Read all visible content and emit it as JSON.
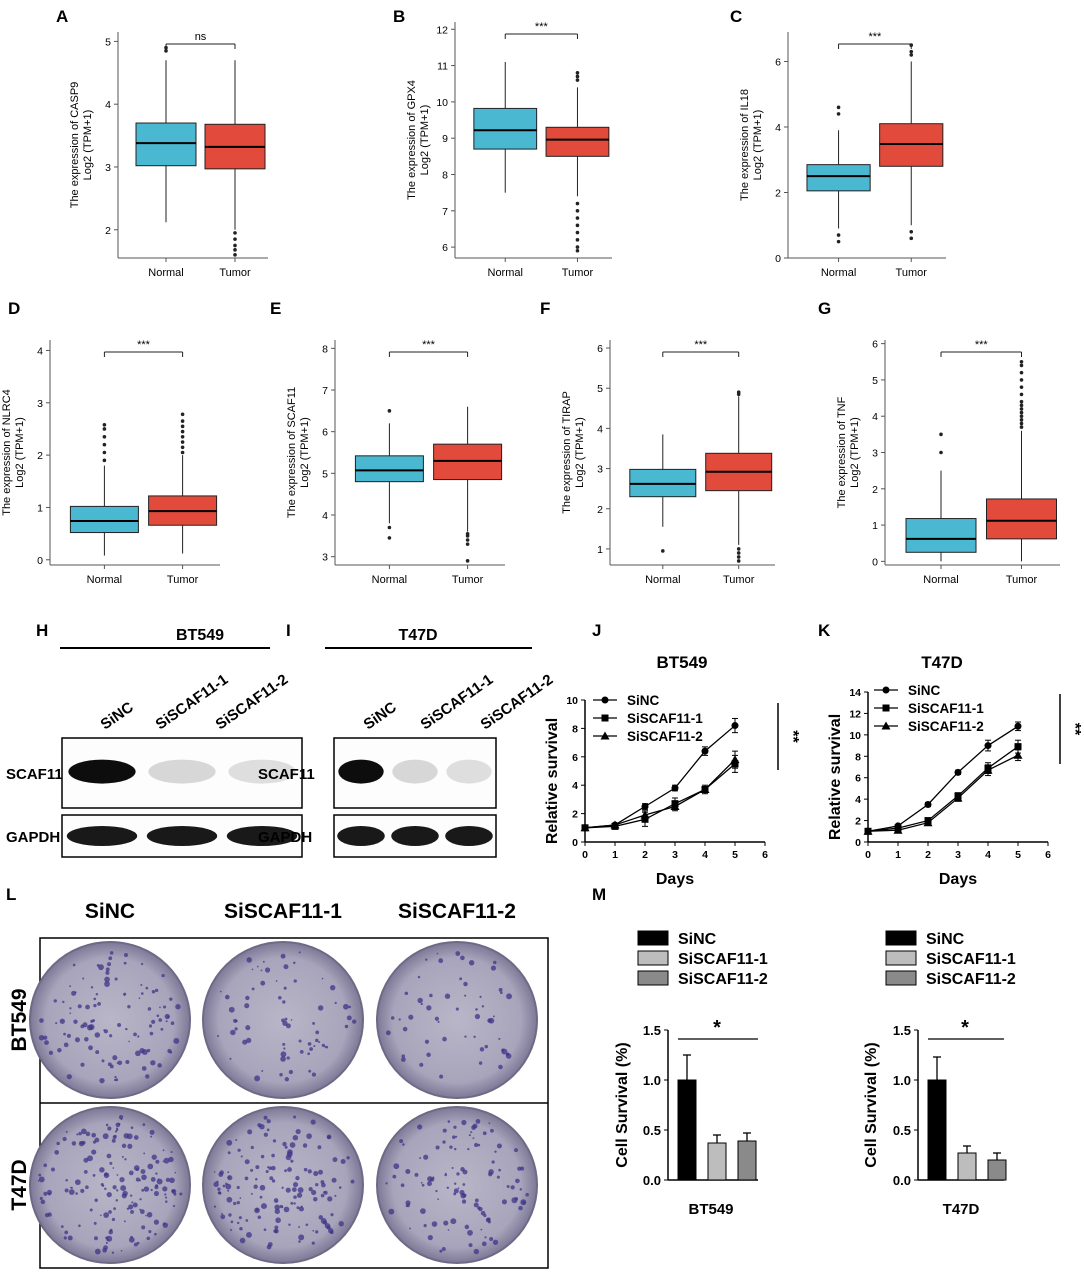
{
  "figure": {
    "colors": {
      "normal": "#4ab8d1",
      "tumor": "#e24b3b"
    },
    "boxplots": [
      {
        "label": "A",
        "gene": "CASP9",
        "ylabel1": "The expression of CASP9",
        "ylabel2": "Log2 (TPM+1)",
        "sig": "ns",
        "categories": [
          "Normal",
          "Tumor"
        ],
        "yticks": [
          2,
          3,
          4,
          5
        ],
        "ylim": [
          1.55,
          5.15
        ],
        "boxes": [
          {
            "q1": 3.02,
            "median": 3.38,
            "q3": 3.7,
            "wlo": 2.12,
            "whi": 4.7,
            "out": [
              4.85,
              4.9
            ]
          },
          {
            "q1": 2.97,
            "median": 3.32,
            "q3": 3.68,
            "wlo": 2.0,
            "whi": 4.7,
            "out": [
              1.6,
              1.68,
              1.75,
              1.85,
              1.95
            ]
          }
        ]
      },
      {
        "label": "B",
        "gene": "GPX4",
        "ylabel1": "The expression of GPX4",
        "ylabel2": "Log2 (TPM+1)",
        "sig": "***",
        "categories": [
          "Normal",
          "Tumor"
        ],
        "yticks": [
          6,
          7,
          8,
          9,
          10,
          11,
          12
        ],
        "ylim": [
          5.7,
          12.2
        ],
        "boxes": [
          {
            "q1": 8.7,
            "median": 9.22,
            "q3": 9.82,
            "wlo": 7.5,
            "whi": 11.1,
            "out": []
          },
          {
            "q1": 8.5,
            "median": 8.96,
            "q3": 9.3,
            "wlo": 7.4,
            "whi": 10.4,
            "out": [
              10.6,
              10.7,
              10.8,
              7.2,
              7.0,
              6.8,
              6.6,
              6.4,
              6.2,
              6.0,
              5.9
            ]
          }
        ]
      },
      {
        "label": "C",
        "gene": "IL18",
        "ylabel1": "The expression of IL18",
        "ylabel2": "Log2 (TPM+1)",
        "sig": "***",
        "categories": [
          "Normal",
          "Tumor"
        ],
        "yticks": [
          0,
          2,
          4,
          6
        ],
        "ylim": [
          0,
          6.9
        ],
        "boxes": [
          {
            "q1": 2.05,
            "median": 2.5,
            "q3": 2.85,
            "wlo": 0.9,
            "whi": 3.9,
            "out": [
              4.4,
              4.6,
              0.7,
              0.5
            ]
          },
          {
            "q1": 2.8,
            "median": 3.48,
            "q3": 4.1,
            "wlo": 1.0,
            "whi": 6.0,
            "out": [
              6.2,
              6.3,
              6.5,
              0.8,
              0.6
            ]
          }
        ]
      },
      {
        "label": "D",
        "gene": "NLRC4",
        "ylabel1": "The expression of NLRC4",
        "ylabel2": "Log2 (TPM+1)",
        "sig": "***",
        "categories": [
          "Normal",
          "Tumor"
        ],
        "yticks": [
          0,
          1,
          2,
          3,
          4
        ],
        "ylim": [
          -0.1,
          4.2
        ],
        "boxes": [
          {
            "q1": 0.52,
            "median": 0.74,
            "q3": 1.02,
            "wlo": 0.08,
            "whi": 1.8,
            "out": [
              1.9,
              2.05,
              2.2,
              2.35,
              2.5,
              2.58
            ]
          },
          {
            "q1": 0.66,
            "median": 0.93,
            "q3": 1.22,
            "wlo": 0.12,
            "whi": 2.0,
            "out": [
              2.05,
              2.15,
              2.25,
              2.35,
              2.45,
              2.55,
              2.65,
              2.78
            ]
          }
        ]
      },
      {
        "label": "E",
        "gene": "SCAF11",
        "ylabel1": "The expression of SCAF11",
        "ylabel2": "Log2 (TPM+1)",
        "sig": "***",
        "categories": [
          "Normal",
          "Tumor"
        ],
        "yticks": [
          3,
          4,
          5,
          6,
          7,
          8
        ],
        "ylim": [
          2.8,
          8.2
        ],
        "boxes": [
          {
            "q1": 4.8,
            "median": 5.07,
            "q3": 5.42,
            "wlo": 3.8,
            "whi": 6.2,
            "out": [
              6.5,
              3.7,
              3.45
            ]
          },
          {
            "q1": 4.85,
            "median": 5.3,
            "q3": 5.7,
            "wlo": 3.6,
            "whi": 6.6,
            "out": [
              3.55,
              3.5,
              3.4,
              3.3,
              2.9
            ]
          }
        ]
      },
      {
        "label": "F",
        "gene": "TIRAP",
        "ylabel1": "The expression of TIRAP",
        "ylabel2": "Log2 (TPM+1)",
        "sig": "***",
        "categories": [
          "Normal",
          "Tumor"
        ],
        "yticks": [
          1,
          2,
          3,
          4,
          5,
          6
        ],
        "ylim": [
          0.6,
          6.2
        ],
        "boxes": [
          {
            "q1": 2.3,
            "median": 2.62,
            "q3": 2.98,
            "wlo": 1.55,
            "whi": 3.85,
            "out": [
              0.95
            ]
          },
          {
            "q1": 2.45,
            "median": 2.92,
            "q3": 3.38,
            "wlo": 1.1,
            "whi": 4.8,
            "out": [
              4.85,
              4.9,
              1.0,
              0.9,
              0.8,
              0.7
            ]
          }
        ]
      },
      {
        "label": "G",
        "gene": "TNF",
        "ylabel1": "The expression of TNF",
        "ylabel2": "Log2 (TPM+1)",
        "sig": "***",
        "categories": [
          "Normal",
          "Tumor"
        ],
        "yticks": [
          0,
          1,
          2,
          3,
          4,
          5,
          6
        ],
        "ylim": [
          -0.1,
          6.1
        ],
        "boxes": [
          {
            "q1": 0.25,
            "median": 0.62,
            "q3": 1.18,
            "wlo": 0.0,
            "whi": 2.5,
            "out": [
              3.0,
              3.5
            ]
          },
          {
            "q1": 0.62,
            "median": 1.12,
            "q3": 1.72,
            "wlo": 0.0,
            "whi": 3.6,
            "out": [
              3.7,
              3.8,
              3.9,
              4.0,
              4.1,
              4.2,
              4.3,
              4.4,
              4.6,
              4.8,
              5.0,
              5.2,
              5.4,
              5.5
            ]
          }
        ]
      }
    ],
    "blots": [
      {
        "label": "H",
        "cell": "BT549",
        "lanes": [
          "SiNC",
          "SiSCAF11-1",
          "SiSCAF11-2"
        ],
        "rows": [
          "SCAF11",
          "GAPDH"
        ]
      },
      {
        "label": "I",
        "cell": "T47D",
        "lanes": [
          "SiNC",
          "SiSCAF11-1",
          "SiSCAF11-2"
        ],
        "rows": [
          "SCAF11",
          "GAPDH"
        ]
      }
    ],
    "growth": [
      {
        "label": "J",
        "title": "BT549",
        "xlabel": "Days",
        "ylabel": "Relative  survival",
        "sig": "**",
        "x": [
          0,
          1,
          2,
          3,
          4,
          5
        ],
        "xticks": [
          0,
          1,
          2,
          3,
          4,
          5,
          6
        ],
        "yticks": [
          0,
          2,
          4,
          6,
          8,
          10
        ],
        "ylim": [
          0,
          10
        ],
        "series": [
          {
            "name": "SiNC",
            "marker": "circle",
            "values": [
              1.0,
              1.2,
              2.5,
              3.8,
              6.4,
              8.2
            ],
            "err": [
              0.1,
              0.1,
              0.2,
              0.2,
              0.3,
              0.5
            ]
          },
          {
            "name": "SiSCAF11-1",
            "marker": "square",
            "values": [
              1.0,
              1.1,
              1.6,
              2.7,
              3.7,
              5.5
            ],
            "err": [
              0.1,
              0.1,
              0.5,
              0.4,
              0.3,
              0.6
            ]
          },
          {
            "name": "SiSCAF11-2",
            "marker": "triangle",
            "values": [
              1.0,
              1.2,
              1.9,
              2.5,
              3.7,
              5.8
            ],
            "err": [
              0.1,
              0.1,
              0.3,
              0.3,
              0.2,
              0.6
            ]
          }
        ]
      },
      {
        "label": "K",
        "title": "T47D",
        "xlabel": "Days",
        "ylabel": "Relative  survival",
        "sig": "**",
        "x": [
          0,
          1,
          2,
          3,
          4,
          5
        ],
        "xticks": [
          0,
          1,
          2,
          3,
          4,
          5,
          6
        ],
        "yticks": [
          0,
          2,
          4,
          6,
          8,
          10,
          12,
          14
        ],
        "ylim": [
          0,
          14
        ],
        "series": [
          {
            "name": "SiNC",
            "marker": "circle",
            "values": [
              1.0,
              1.5,
              3.5,
              6.5,
              9.0,
              10.8
            ],
            "err": [
              0.1,
              0.1,
              0.2,
              0.2,
              0.5,
              0.4
            ]
          },
          {
            "name": "SiSCAF11-1",
            "marker": "square",
            "values": [
              1.0,
              1.3,
              2.0,
              4.3,
              6.9,
              8.9
            ],
            "err": [
              0.1,
              0.1,
              0.2,
              0.3,
              0.5,
              0.6
            ]
          },
          {
            "name": "SiSCAF11-2",
            "marker": "triangle",
            "values": [
              1.0,
              1.1,
              1.8,
              4.1,
              6.7,
              8.1
            ],
            "err": [
              0.1,
              0.1,
              0.2,
              0.3,
              0.5,
              0.5
            ]
          }
        ]
      }
    ],
    "colony": {
      "label": "L",
      "cols": [
        "SiNC",
        "SiSCAF11-1",
        "SiSCAF11-2"
      ],
      "rows": [
        "BT549",
        "T47D"
      ]
    },
    "bars": [
      {
        "label": "M",
        "cell": "BT549",
        "ylabel": "Cell Survival (%)",
        "sig": "*",
        "legend": [
          "SiNC",
          "SiSCAF11-1",
          "SiSCAF11-2"
        ],
        "fills": [
          "#000000",
          "#bdbdbd",
          "#8a8a8a"
        ],
        "yticks": [
          "0.0",
          "0.5",
          "1.0",
          "1.5"
        ],
        "ylim": [
          0,
          1.5
        ],
        "values": [
          1.0,
          0.37,
          0.39
        ],
        "err": [
          0.25,
          0.08,
          0.08
        ]
      },
      {
        "label": "",
        "cell": "T47D",
        "ylabel": "Cell Survival (%)",
        "sig": "*",
        "legend": [
          "SiNC",
          "SiSCAF11-1",
          "SiSCAF11-2"
        ],
        "fills": [
          "#000000",
          "#bdbdbd",
          "#8a8a8a"
        ],
        "yticks": [
          "0.0",
          "0.5",
          "1.0",
          "1.5"
        ],
        "ylim": [
          0,
          1.5
        ],
        "values": [
          1.0,
          0.27,
          0.2
        ],
        "err": [
          0.23,
          0.07,
          0.07
        ]
      }
    ]
  }
}
